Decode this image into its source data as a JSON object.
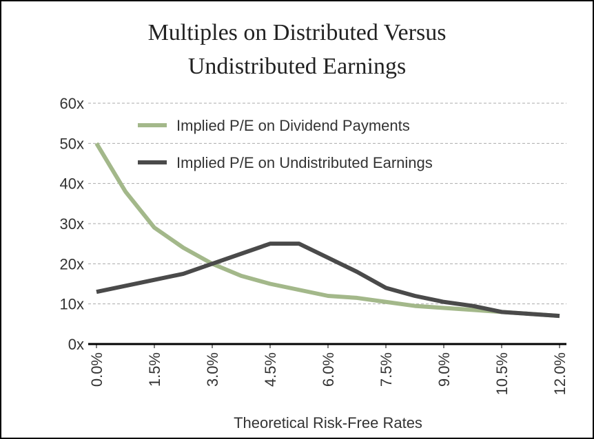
{
  "chart_data": {
    "type": "line",
    "title": "Multiples on Distributed Versus Undistributed Earnings",
    "title_lines": [
      "Multiples on Distributed Versus",
      "Undistributed Earnings"
    ],
    "x_label": "Theoretical Risk-Free Rates",
    "x": [
      0,
      0.75,
      1.5,
      2.25,
      3,
      3.75,
      4.5,
      5.25,
      6,
      6.75,
      7.5,
      8.25,
      9,
      9.75,
      10.5,
      11.25,
      12
    ],
    "series": [
      {
        "name": "Implied P/E on Dividend Payments",
        "color": "#a3b88a",
        "values": [
          50,
          38,
          29,
          24,
          20,
          17,
          15,
          13.5,
          12,
          11.5,
          10.5,
          9.5,
          9,
          8.5,
          8,
          7.5,
          7
        ]
      },
      {
        "name": "Implied P/E on Undistributed Earnings",
        "color": "#4a4a4a",
        "values": [
          13,
          14.5,
          16,
          17.5,
          20,
          22.5,
          25,
          25,
          21.5,
          18,
          14,
          12,
          10.5,
          9.5,
          8,
          7.5,
          7
        ]
      }
    ],
    "xlim": [
      0,
      12
    ],
    "xticks": [
      {
        "value": 0,
        "label": "0.0%"
      },
      {
        "value": 1.5,
        "label": "1.5%"
      },
      {
        "value": 3,
        "label": "3.0%"
      },
      {
        "value": 4.5,
        "label": "4.5%"
      },
      {
        "value": 6,
        "label": "6.0%"
      },
      {
        "value": 7.5,
        "label": "7.5%"
      },
      {
        "value": 9,
        "label": "9.0%"
      },
      {
        "value": 10.5,
        "label": "10.5%"
      },
      {
        "value": 12,
        "label": "12.0%"
      }
    ],
    "ylim": [
      0,
      60
    ],
    "yticks": [
      {
        "value": 0,
        "label": "0x"
      },
      {
        "value": 10,
        "label": "10x"
      },
      {
        "value": 20,
        "label": "20x"
      },
      {
        "value": 30,
        "label": "30x"
      },
      {
        "value": 40,
        "label": "40x"
      },
      {
        "value": 50,
        "label": "50x"
      },
      {
        "value": 60,
        "label": "60x"
      }
    ],
    "grid": true,
    "legend": "upper left"
  }
}
